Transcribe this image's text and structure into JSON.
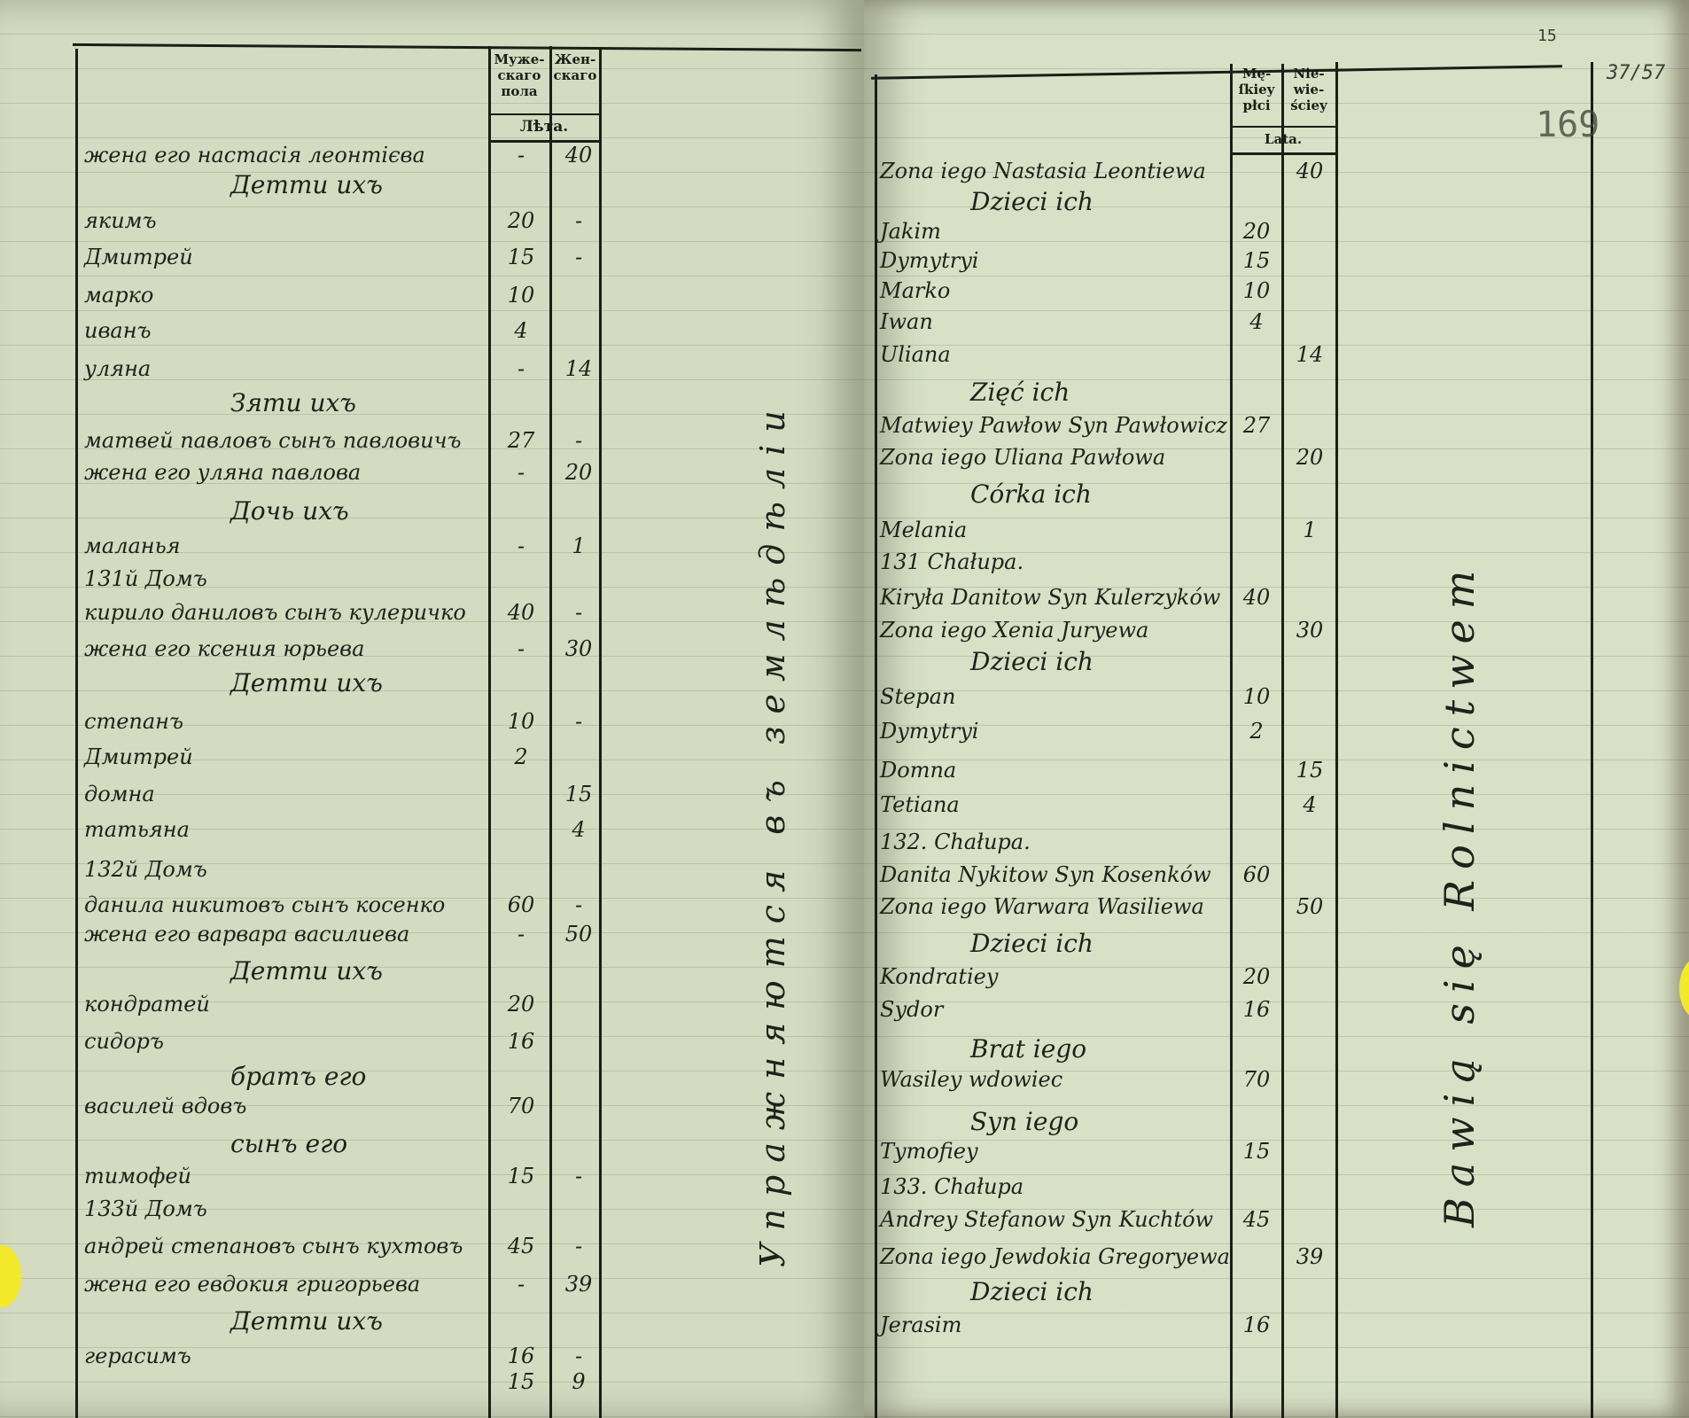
{
  "left_page": {
    "header": {
      "male": "Муже-\nскаго\nпола",
      "female": "Жен-\nскаго",
      "years": "Лѣта."
    },
    "side_note": "Упражняются въ землѣдѣлiи",
    "rows": [
      {
        "text": "жена его настасія леонтієва",
        "male": "-",
        "female": "40"
      },
      {
        "text": "Детти ихъ",
        "heading": true
      },
      {
        "text": "якимъ",
        "male": "20",
        "female": "-"
      },
      {
        "text": "Дмитрей",
        "male": "15",
        "female": "-"
      },
      {
        "text": "марко",
        "male": "10"
      },
      {
        "text": "иванъ",
        "male": "4"
      },
      {
        "text": "уляна",
        "male": "-",
        "female": "14"
      },
      {
        "text": "Зяти ихъ",
        "heading": true
      },
      {
        "text": "матвей павловъ сынъ павловичъ",
        "male": "27",
        "female": "-"
      },
      {
        "text": "жена его уляна павлова",
        "male": "-",
        "female": "20"
      },
      {
        "text": "Дочь ихъ",
        "heading": true
      },
      {
        "text": "маланья",
        "male": "-",
        "female": "1"
      },
      {
        "text": "131й Домъ"
      },
      {
        "text": "кирило даниловъ сынъ кулеричко",
        "male": "40",
        "female": "-"
      },
      {
        "text": "жена его ксения юрьева",
        "male": "-",
        "female": "30"
      },
      {
        "text": "Детти ихъ",
        "heading": true
      },
      {
        "text": "степанъ",
        "male": "10",
        "female": "-"
      },
      {
        "text": "Дмитрей",
        "male": "2"
      },
      {
        "text": "домна",
        "female": "15"
      },
      {
        "text": "татьяна",
        "female": "4"
      },
      {
        "text": "132й Домъ"
      },
      {
        "text": "данила никитовъ сынъ косенко",
        "male": "60",
        "female": "-"
      },
      {
        "text": "жена его варвара василиева",
        "male": "-",
        "female": "50"
      },
      {
        "text": "Детти ихъ",
        "heading": true
      },
      {
        "text": "кондратей",
        "male": "20"
      },
      {
        "text": "сидоръ",
        "male": "16"
      },
      {
        "text": "братъ его",
        "heading": true
      },
      {
        "text": "василей вдовъ",
        "male": "70"
      },
      {
        "text": "сынъ его",
        "heading": true
      },
      {
        "text": "тимофей",
        "male": "15",
        "female": "-"
      },
      {
        "text": "133й Домъ"
      },
      {
        "text": "андрей степановъ сынъ кухтовъ",
        "male": "45",
        "female": "-"
      },
      {
        "text": "жена его евдокия григорьева",
        "male": "-",
        "female": "39"
      },
      {
        "text": "Детти ихъ",
        "heading": true
      },
      {
        "text": "герасимъ",
        "male": "16",
        "female": "-"
      },
      {
        "text": "",
        "male": "15",
        "female": "9"
      }
    ]
  },
  "right_page": {
    "header": {
      "male": "Mę-\nſkiey\npłci",
      "female": "Nie-\nwie-\nściey",
      "years": "Lata."
    },
    "side_note": "Bawią się Rolnictwem",
    "page_number_stamp": "169",
    "folio_note": "37/57",
    "corner_note": "15",
    "rows": [
      {
        "text": "Zona iego Nastasia Leontiewa",
        "female": "40"
      },
      {
        "text": "Dzieci ich",
        "heading": true
      },
      {
        "text": "Jakim",
        "male": "20"
      },
      {
        "text": "Dymytryi",
        "male": "15"
      },
      {
        "text": "Marko",
        "male": "10"
      },
      {
        "text": "Iwan",
        "male": "4"
      },
      {
        "text": "Uliana",
        "female": "14"
      },
      {
        "text": "Zięć ich",
        "heading": true
      },
      {
        "text": "Matwiey Pawłow Syn Pawłowicz",
        "male": "27"
      },
      {
        "text": "Zona iego Uliana Pawłowa",
        "female": "20"
      },
      {
        "text": "Córka ich",
        "heading": true
      },
      {
        "text": "Melania",
        "female": "1"
      },
      {
        "text": "131 Chałupa."
      },
      {
        "text": "Kiryła Danitow Syn Kulerzyków",
        "male": "40"
      },
      {
        "text": "Zona iego Xenia Juryewa",
        "female": "30"
      },
      {
        "text": "Dzieci ich",
        "heading": true
      },
      {
        "text": "Stepan",
        "male": "10"
      },
      {
        "text": "Dymytryi",
        "male": "2"
      },
      {
        "text": "Domna",
        "female": "15"
      },
      {
        "text": "Tetiana",
        "female": "4"
      },
      {
        "text": "132. Chałupa."
      },
      {
        "text": "Danita Nykitow Syn Kosenków",
        "male": "60"
      },
      {
        "text": "Zona iego Warwara Wasiliewa",
        "female": "50"
      },
      {
        "text": "Dzieci ich",
        "heading": true
      },
      {
        "text": "Kondratiey",
        "male": "20"
      },
      {
        "text": "Sydor",
        "male": "16"
      },
      {
        "text": "Brat iego",
        "heading": true
      },
      {
        "text": "Wasiley wdowiec",
        "male": "70"
      },
      {
        "text": "Syn iego",
        "heading": true
      },
      {
        "text": "Tymofiey",
        "male": "15"
      },
      {
        "text": "133. Chałupa"
      },
      {
        "text": "Andrey Stefanow Syn Kuchtów",
        "male": "45"
      },
      {
        "text": "Zona iego Jewdokia Gregoryewa",
        "female": "39"
      },
      {
        "text": "Dzieci ich",
        "heading": true
      },
      {
        "text": "Jerasim",
        "male": "16"
      }
    ]
  },
  "colors": {
    "paper": "#d8e1c6",
    "ink": "#1d221b",
    "sticky_dot": "#f2e92a"
  }
}
